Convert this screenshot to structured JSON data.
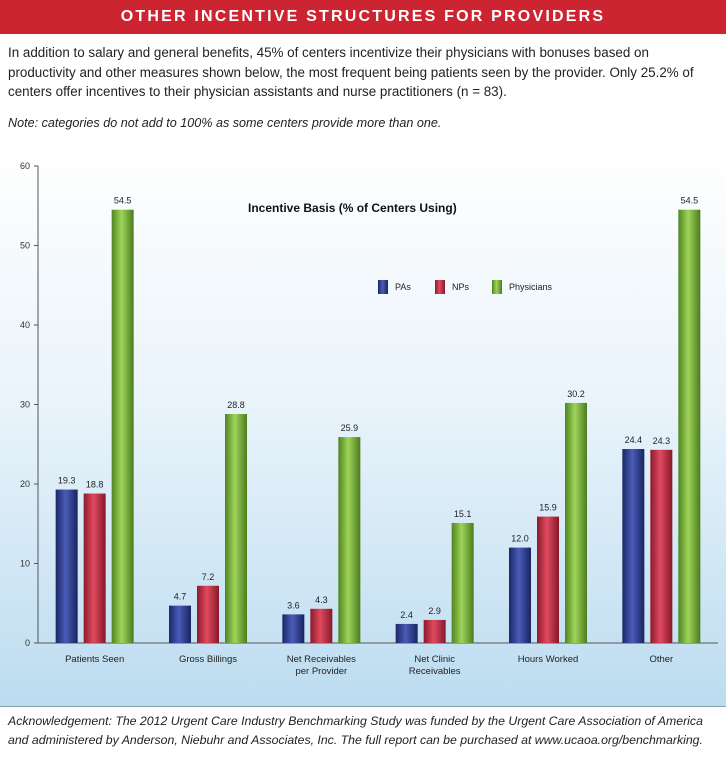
{
  "header": {
    "title": "OTHER INCENTIVE STRUCTURES FOR PROVIDERS"
  },
  "intro": "In addition to salary and general benefits, 45% of centers incentivize their physicians with bonuses based on productivity and other measures shown below, the most frequent being patients seen by the provider. Only 25.2% of centers offer incentives to their physician assistants and nurse practitioners (n = 83).",
  "note": "Note: categories do not add to 100% as some centers provide more than one.",
  "acknowledgement": "Acknowledgement: The 2012 Urgent Care Industry Benchmarking Study was funded by the Urgent Care Association of America and administered by Anderson, Niebuhr and Associates, Inc. The full report can be purchased at www.ucaoa.org/benchmarking.",
  "chart_data": {
    "type": "bar",
    "title": "Incentive Basis (% of Centers Using)",
    "xlabel": "",
    "ylabel": "",
    "ylim": [
      0,
      60
    ],
    "yticks": [
      "0",
      "10",
      "20",
      "30",
      "40",
      "50",
      "60"
    ],
    "grid": false,
    "legend_position": "top-right",
    "categories": [
      [
        "Patients Seen"
      ],
      [
        "Gross Billings"
      ],
      [
        "Net Receivables",
        "per Provider"
      ],
      [
        "Net Clinic",
        "Receivables"
      ],
      [
        "Hours Worked"
      ],
      [
        "Other"
      ]
    ],
    "series": [
      {
        "name": "PAs",
        "color": "#2b3a8c",
        "values": [
          19.3,
          4.7,
          3.6,
          2.4,
          12.0,
          24.4
        ],
        "labels": [
          "19.3",
          "4.7",
          "3.6",
          "2.4",
          "12.0",
          "24.4"
        ]
      },
      {
        "name": "NPs",
        "color": "#c0283f",
        "values": [
          18.8,
          7.2,
          4.3,
          2.9,
          15.9,
          24.3
        ],
        "labels": [
          "18.8",
          "7.2",
          "4.3",
          "2.9",
          "15.9",
          "24.3"
        ]
      },
      {
        "name": "Physicians",
        "color": "#78b33a",
        "values": [
          54.5,
          28.8,
          25.9,
          15.1,
          30.2,
          54.5
        ],
        "labels": [
          "54.5",
          "28.8",
          "25.9",
          "15.1",
          "30.2",
          "54.5"
        ]
      }
    ]
  }
}
